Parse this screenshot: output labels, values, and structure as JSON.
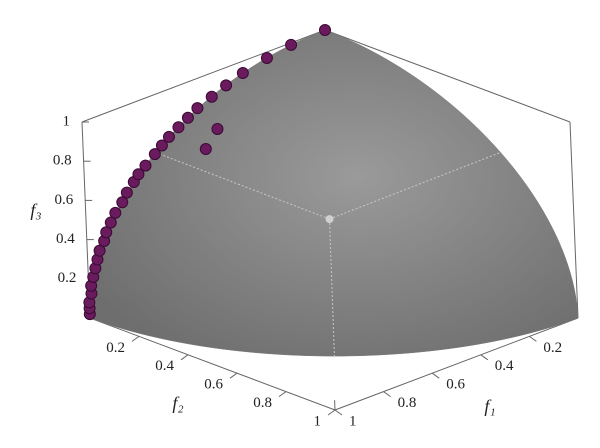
{
  "chart_data": {
    "type": "scatter3d",
    "x_label": "f₁",
    "y_label": "f₂",
    "z_label": "f₃",
    "xlim": [
      0,
      1
    ],
    "ylim": [
      0,
      1
    ],
    "zlim": [
      0,
      1
    ],
    "xticks": [
      0.2,
      0.4,
      0.6,
      0.8,
      1
    ],
    "yticks": [
      0.2,
      0.4,
      0.6,
      0.8,
      1
    ],
    "zticks": [
      0.2,
      0.4,
      0.6,
      0.8,
      1
    ],
    "surface_color": "#8c8c8c",
    "series": [
      {
        "color": "#6a1b5e",
        "x": [
          1.0,
          1.0,
          1.0,
          0.99,
          0.99,
          0.98,
          0.97,
          0.96,
          0.95,
          0.93,
          0.92,
          0.9,
          0.88,
          0.85,
          0.83,
          0.8,
          0.78,
          0.75,
          0.71,
          0.68,
          0.65,
          0.61,
          0.57,
          0.53,
          0.47,
          0.41,
          0.34,
          0.24,
          0.14,
          0.0,
          0.55,
          0.62
        ],
        "y": [
          0,
          0,
          0,
          0,
          0,
          0,
          0,
          0,
          0,
          0,
          0,
          0,
          0,
          0,
          0,
          0,
          0,
          0,
          0,
          0,
          0,
          0,
          0,
          0,
          0,
          0,
          0,
          0,
          0,
          0,
          0.1,
          0.12
        ],
        "z": [
          0.02,
          0.05,
          0.08,
          0.12,
          0.16,
          0.2,
          0.24,
          0.28,
          0.32,
          0.36,
          0.4,
          0.44,
          0.48,
          0.52,
          0.56,
          0.6,
          0.63,
          0.66,
          0.7,
          0.73,
          0.76,
          0.79,
          0.82,
          0.85,
          0.88,
          0.91,
          0.94,
          0.97,
          0.99,
          1.0,
          0.8,
          0.74
        ]
      }
    ]
  }
}
